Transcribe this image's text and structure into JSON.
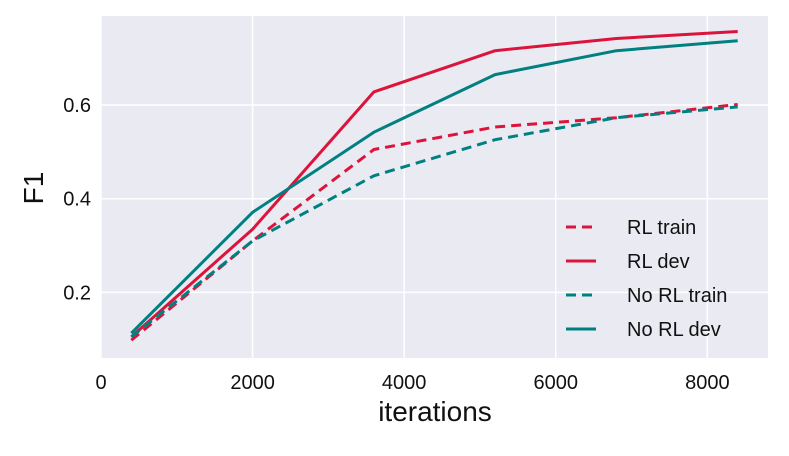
{
  "chart_data": {
    "type": "line",
    "title": "",
    "xlabel": "iterations",
    "ylabel": "F1",
    "xlim": [
      0,
      8800
    ],
    "ylim": [
      0.06,
      0.79
    ],
    "x_ticks": [
      0,
      2000,
      4000,
      6000,
      8000
    ],
    "x_tick_labels": [
      "0",
      "2000",
      "4000",
      "6000",
      "8000"
    ],
    "y_ticks": [
      0.2,
      0.4,
      0.6
    ],
    "y_tick_labels": [
      "0.2",
      "0.4",
      "0.6"
    ],
    "grid": true,
    "background": "#eaeaf2",
    "legend_position": "bottom-right",
    "series": [
      {
        "name": "RL train",
        "color": "#dc143c",
        "style": "dashed",
        "x": [
          400,
          2000,
          3600,
          5200,
          6800,
          8400
        ],
        "y": [
          0.098,
          0.31,
          0.505,
          0.553,
          0.573,
          0.601
        ]
      },
      {
        "name": "RL dev",
        "color": "#dc143c",
        "style": "solid",
        "x": [
          400,
          2000,
          3600,
          5200,
          6800,
          8400
        ],
        "y": [
          0.105,
          0.335,
          0.628,
          0.716,
          0.742,
          0.757
        ]
      },
      {
        "name": "No RL train",
        "color": "#008080",
        "style": "dashed",
        "x": [
          400,
          2000,
          3600,
          5200,
          6800,
          8400
        ],
        "y": [
          0.105,
          0.31,
          0.449,
          0.526,
          0.573,
          0.596
        ]
      },
      {
        "name": "No RL dev",
        "color": "#008080",
        "style": "solid",
        "x": [
          400,
          2000,
          3600,
          5200,
          6800,
          8400
        ],
        "y": [
          0.113,
          0.371,
          0.542,
          0.665,
          0.716,
          0.737
        ]
      }
    ]
  }
}
